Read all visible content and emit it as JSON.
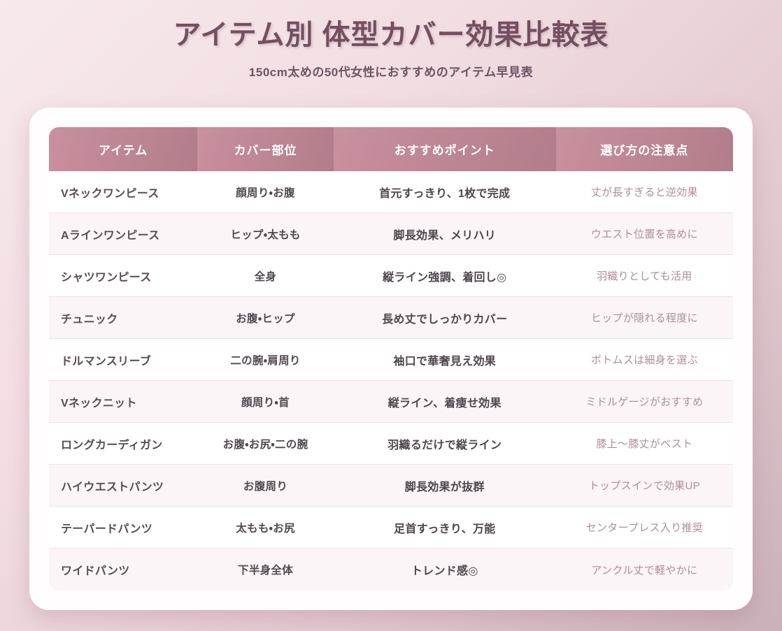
{
  "chart_data": {
    "type": "table",
    "title": "アイテム別 体型カバー効果比較表",
    "subtitle": "150cm太めの50代女性におすすめのアイテム早見表",
    "columns": [
      "アイテム",
      "カバー部位",
      "おすすめポイント",
      "選び方の注意点"
    ],
    "rows": [
      [
        "Vネックワンピース",
        "顔周り・お腹",
        "首元すっきり、1枚で完成",
        "丈が長すぎると逆効果"
      ],
      [
        "Aラインワンピース",
        "ヒップ・太もも",
        "脚長効果、メリハリ",
        "ウエスト位置を高めに"
      ],
      [
        "シャツワンピース",
        "全身",
        "縦ライン強調、着回し◎",
        "羽織りとしても活用"
      ],
      [
        "チュニック",
        "お腹・ヒップ",
        "長め丈でしっかりカバー",
        "ヒップが隠れる程度に"
      ],
      [
        "ドルマンスリーブ",
        "二の腕・肩周り",
        "袖口で華奢見え効果",
        "ボトムスは細身を選ぶ"
      ],
      [
        "Vネックニット",
        "顔周り・首",
        "縦ライン、着痩せ効果",
        "ミドルゲージがおすすめ"
      ],
      [
        "ロングカーディガン",
        "お腹・お尻・二の腕",
        "羽織るだけで縦ライン",
        "膝上〜膝丈がベスト"
      ],
      [
        "ハイウエストパンツ",
        "お腹周り",
        "脚長効果が抜群",
        "トップスインで効果UP"
      ],
      [
        "テーパードパンツ",
        "太もも・お尻",
        "足首すっきり、万能",
        "センタープレス入り推奨"
      ],
      [
        "ワイドパンツ",
        "下半身全体",
        "トレンド感◎",
        "アンクル丈で軽やかに"
      ]
    ],
    "layout_hints": {
      "row_striping": "odd rows white, even rows light pink",
      "column_alignment": [
        "left",
        "center",
        "center",
        "center"
      ]
    }
  },
  "colors": {
    "background_gradient_start": "#f7e9ec",
    "background_gradient_end": "#cab0b8",
    "title_text": "#744f60",
    "subtitle_text": "#6f5363",
    "card_background": "#fffdfe",
    "header_gradient_left": "#c9909e",
    "header_gradient_right": "#b27d8a",
    "header_text": "#ffffff",
    "row_alt_background": "#fbf5f7",
    "body_text": "#514950",
    "note_text": "#ae8d9a",
    "row_divider": "#eee0e4"
  }
}
